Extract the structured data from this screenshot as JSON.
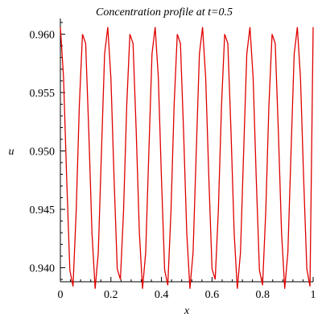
{
  "chart_data": {
    "type": "line",
    "title": "Concentration profile at t=0.5",
    "xlabel": "x",
    "ylabel": "u",
    "xlim": [
      0,
      1
    ],
    "ylim": [
      0.9388,
      0.9612
    ],
    "x_ticks": [
      "0",
      "0.2",
      "0.4",
      "0.6",
      "0.8",
      "1"
    ],
    "y_ticks": [
      "0.940",
      "0.945",
      "0.950",
      "0.955",
      "0.960"
    ],
    "x_tick_values": [
      0,
      0.2,
      0.4,
      0.6,
      0.8,
      1
    ],
    "y_tick_values": [
      0.94,
      0.945,
      0.95,
      0.955,
      0.96
    ],
    "grid": false,
    "legend": "none",
    "series": [
      {
        "color": "#e00000",
        "x": [
          0,
          0.0125,
          0.025,
          0.0375,
          0.05,
          0.0625,
          0.075,
          0.0875,
          0.1,
          0.1125,
          0.125,
          0.1375,
          0.15,
          0.1625,
          0.175,
          0.1875,
          0.2,
          0.2125,
          0.225,
          0.2375,
          0.25,
          0.2625,
          0.275,
          0.2875,
          0.3,
          0.3125,
          0.325,
          0.3375,
          0.35,
          0.3625,
          0.375,
          0.3875,
          0.4,
          0.4125,
          0.425,
          0.4375,
          0.45,
          0.4625,
          0.475,
          0.4875,
          0.5,
          0.5125,
          0.525,
          0.5375,
          0.55,
          0.5625,
          0.575,
          0.5875,
          0.6,
          0.6125,
          0.625,
          0.6375,
          0.65,
          0.6625,
          0.675,
          0.6875,
          0.7,
          0.7125,
          0.725,
          0.7375,
          0.75,
          0.7625,
          0.775,
          0.7875,
          0.8,
          0.8125,
          0.825,
          0.8375,
          0.85,
          0.8625,
          0.875,
          0.8875,
          0.9,
          0.9125,
          0.925,
          0.9375,
          0.95,
          0.9625,
          0.975,
          0.9875,
          1
        ],
        "y": [
          0.9606,
          0.9563,
          0.9476,
          0.9398,
          0.9384,
          0.9448,
          0.9539,
          0.96,
          0.9592,
          0.9516,
          0.943,
          0.9382,
          0.9413,
          0.9499,
          0.9583,
          0.9606,
          0.9562,
          0.9476,
          0.9399,
          0.939,
          0.9449,
          0.9539,
          0.96,
          0.9592,
          0.9517,
          0.943,
          0.9382,
          0.9413,
          0.9499,
          0.9583,
          0.9606,
          0.9563,
          0.9476,
          0.9398,
          0.9385,
          0.9448,
          0.9539,
          0.96,
          0.9592,
          0.9516,
          0.943,
          0.9382,
          0.9413,
          0.9499,
          0.9583,
          0.9606,
          0.9562,
          0.9476,
          0.9399,
          0.939,
          0.9449,
          0.9539,
          0.96,
          0.9592,
          0.9517,
          0.943,
          0.9382,
          0.9413,
          0.9499,
          0.9583,
          0.9606,
          0.9563,
          0.9476,
          0.9398,
          0.9385,
          0.9448,
          0.9539,
          0.96,
          0.9592,
          0.9516,
          0.943,
          0.9382,
          0.9413,
          0.9499,
          0.9583,
          0.9606,
          0.9562,
          0.9476,
          0.9399,
          0.9384,
          0.9606
        ]
      }
    ]
  }
}
